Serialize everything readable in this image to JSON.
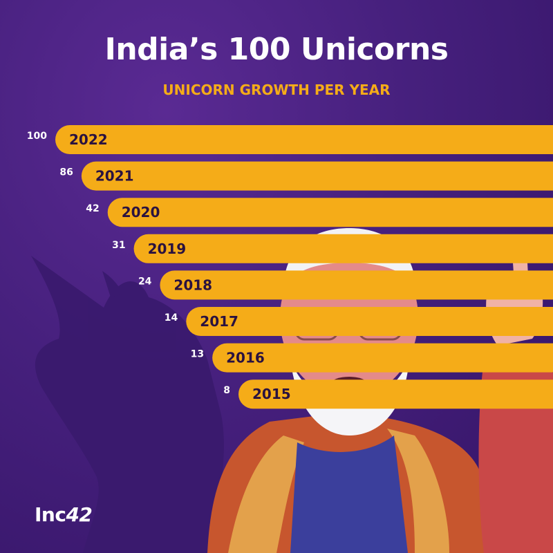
{
  "header": {
    "title": "India’s 100 Unicorns",
    "subtitle": "UNICORN GROWTH PER YEAR"
  },
  "chart_data": {
    "type": "bar",
    "orientation": "horizontal",
    "title": "India’s 100 Unicorns",
    "subtitle": "UNICORN GROWTH PER YEAR",
    "categories": [
      "2022",
      "2021",
      "2020",
      "2019",
      "2018",
      "2017",
      "2016",
      "2015"
    ],
    "values": [
      100,
      86,
      42,
      31,
      24,
      14,
      13,
      8
    ],
    "bar_color": "#f5ac18",
    "background_color": "#46207d"
  },
  "brand": {
    "prefix": "Inc",
    "suffix": "42"
  },
  "colors": {
    "accent": "#f5ac18",
    "background": "#46207d",
    "text": "#ffffff"
  }
}
